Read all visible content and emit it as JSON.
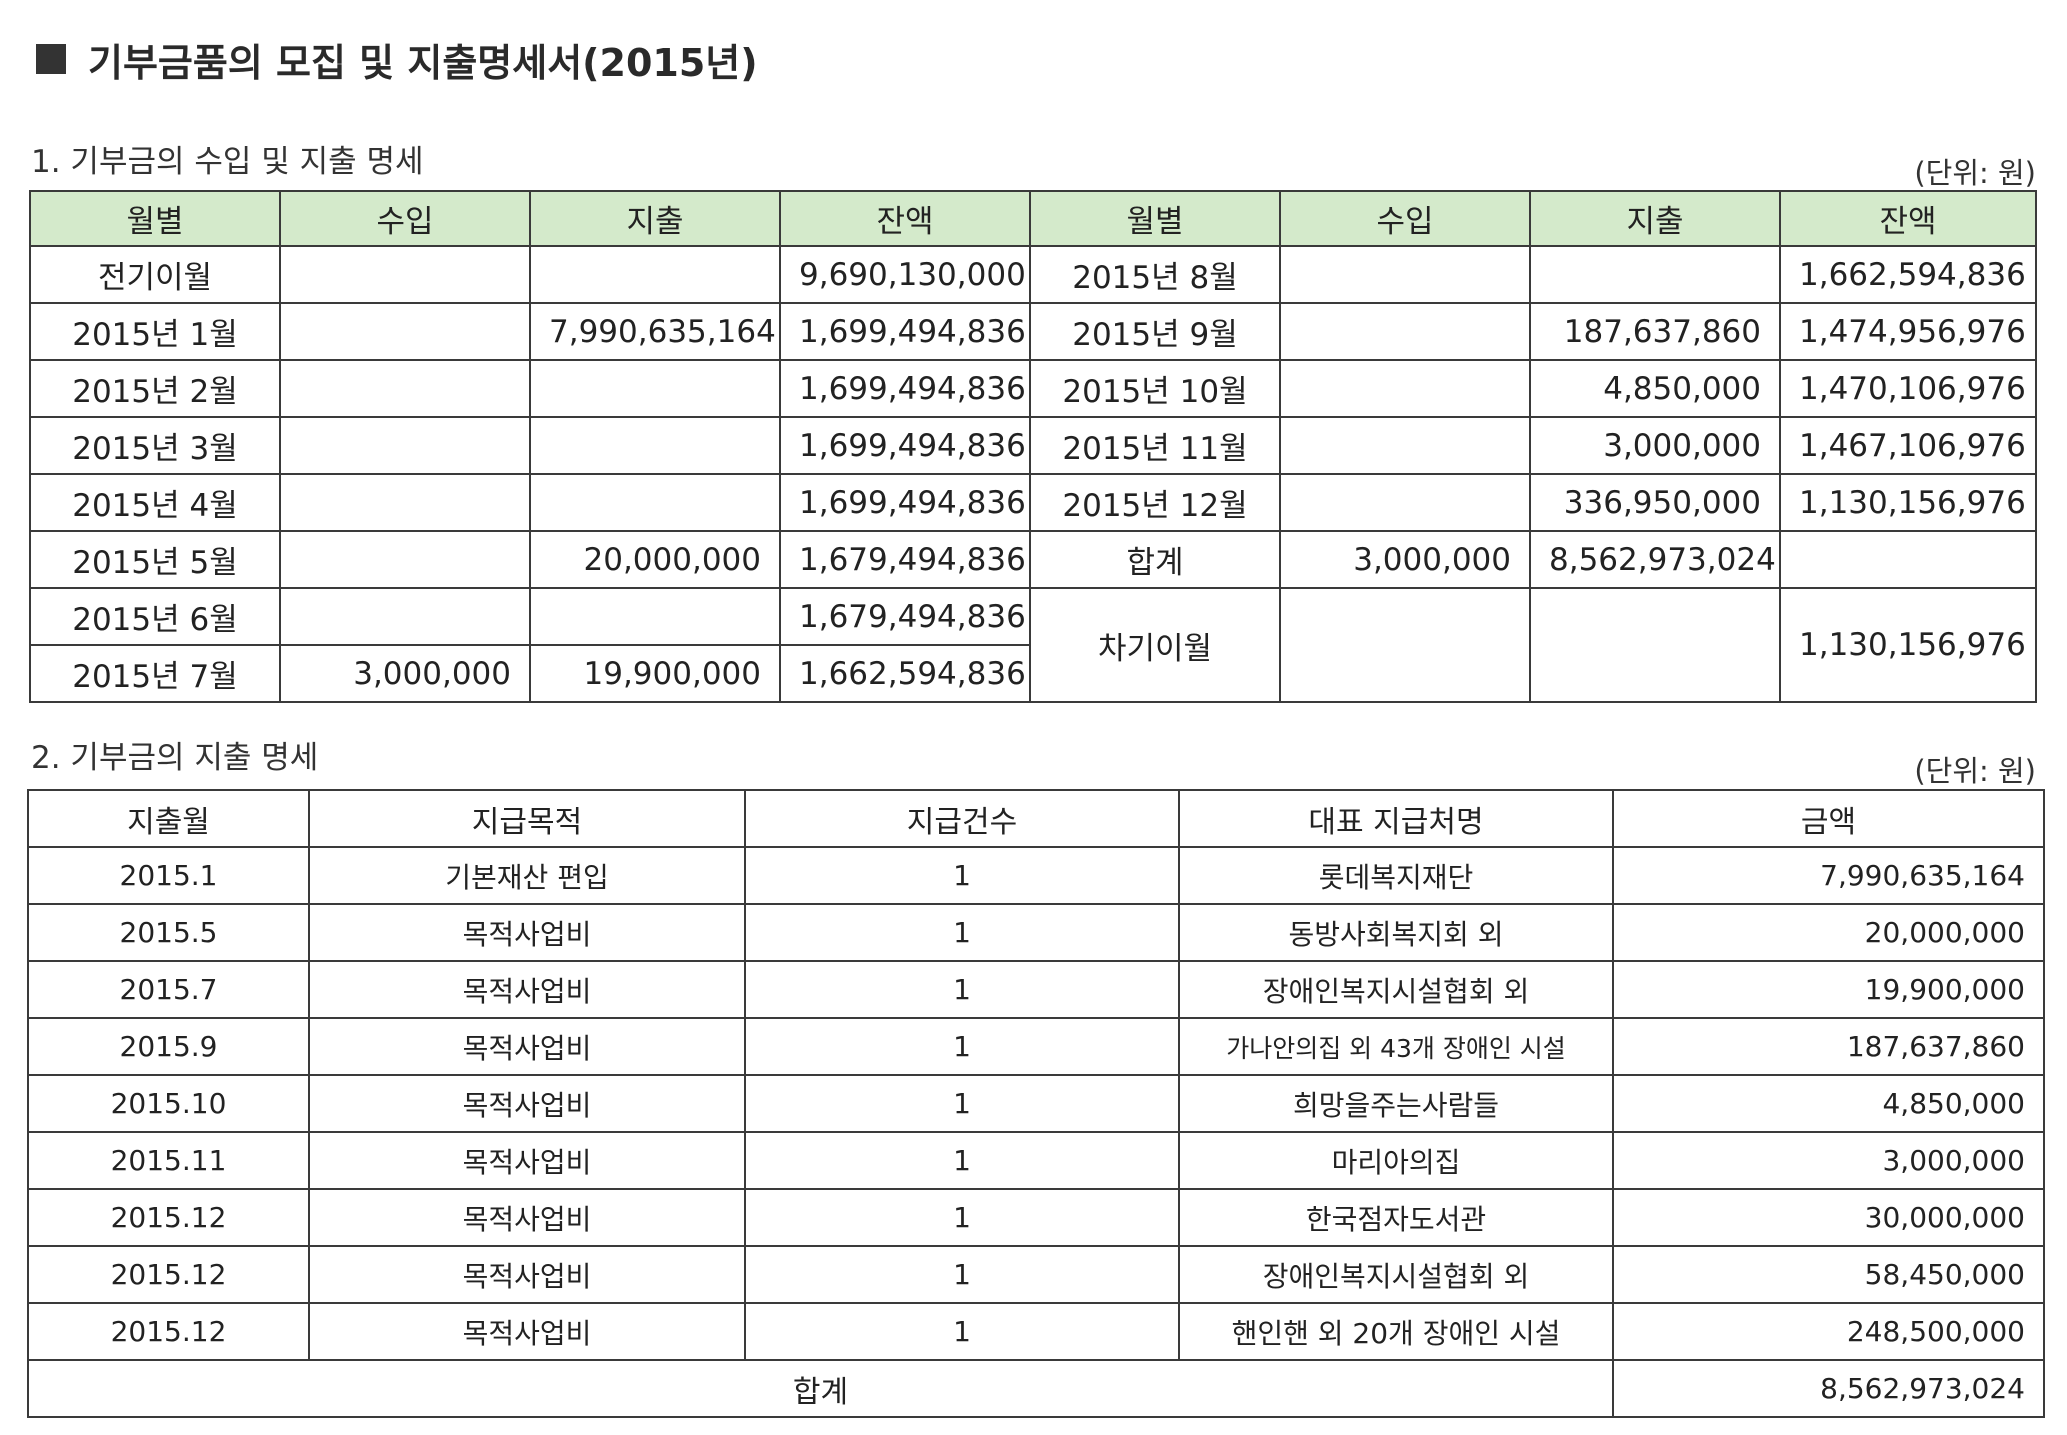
{
  "page_title": "기부금품의 모집 및 지출명세서(2015년)",
  "section1": {
    "title": "1. 기부금의 수입 및 지출 명세",
    "unit": "(단위: 원)",
    "headers": [
      "월별",
      "수입",
      "지출",
      "잔액",
      "월별",
      "수입",
      "지출",
      "잔액"
    ],
    "left_rows": [
      {
        "month": "전기이월",
        "income": "",
        "expense": "",
        "balance": "9,690,130,000"
      },
      {
        "month": "2015년 1월",
        "income": "",
        "expense": "7,990,635,164",
        "balance": "1,699,494,836"
      },
      {
        "month": "2015년 2월",
        "income": "",
        "expense": "",
        "balance": "1,699,494,836"
      },
      {
        "month": "2015년 3월",
        "income": "",
        "expense": "",
        "balance": "1,699,494,836"
      },
      {
        "month": "2015년 4월",
        "income": "",
        "expense": "",
        "balance": "1,699,494,836"
      },
      {
        "month": "2015년 5월",
        "income": "",
        "expense": "20,000,000",
        "balance": "1,679,494,836"
      },
      {
        "month": "2015년 6월",
        "income": "",
        "expense": "",
        "balance": "1,679,494,836"
      },
      {
        "month": "2015년 7월",
        "income": "3,000,000",
        "expense": "19,900,000",
        "balance": "1,662,594,836"
      }
    ],
    "right_rows": [
      {
        "month": "2015년 8월",
        "income": "",
        "expense": "",
        "balance": "1,662,594,836"
      },
      {
        "month": "2015년 9월",
        "income": "",
        "expense": "187,637,860",
        "balance": "1,474,956,976"
      },
      {
        "month": "2015년 10월",
        "income": "",
        "expense": "4,850,000",
        "balance": "1,470,106,976"
      },
      {
        "month": "2015년 11월",
        "income": "",
        "expense": "3,000,000",
        "balance": "1,467,106,976"
      },
      {
        "month": "2015년 12월",
        "income": "",
        "expense": "336,950,000",
        "balance": "1,130,156,976"
      },
      {
        "month": "합계",
        "income": "3,000,000",
        "expense": "8,562,973,024",
        "balance": ""
      },
      {
        "month": "차기이월",
        "income": "",
        "expense": "",
        "balance": "1,130,156,976"
      }
    ]
  },
  "section2": {
    "title": "2. 기부금의 지출 명세",
    "unit": "(단위: 원)",
    "headers": [
      "지출월",
      "지급목적",
      "지급건수",
      "대표 지급처명",
      "금액"
    ],
    "rows": [
      {
        "month": "2015.1",
        "purpose": "기본재산 편입",
        "count": "1",
        "recipient": "롯데복지재단",
        "amount": "7,990,635,164"
      },
      {
        "month": "2015.5",
        "purpose": "목적사업비",
        "count": "1",
        "recipient": "동방사회복지회 외",
        "amount": "20,000,000"
      },
      {
        "month": "2015.7",
        "purpose": "목적사업비",
        "count": "1",
        "recipient": "장애인복지시설협회 외",
        "amount": "19,900,000"
      },
      {
        "month": "2015.9",
        "purpose": "목적사업비",
        "count": "1",
        "recipient": "가나안의집 외 43개 장애인 시설",
        "amount": "187,637,860"
      },
      {
        "month": "2015.10",
        "purpose": "목적사업비",
        "count": "1",
        "recipient": "희망을주는사람들",
        "amount": "4,850,000"
      },
      {
        "month": "2015.11",
        "purpose": "목적사업비",
        "count": "1",
        "recipient": "마리아의집",
        "amount": "3,000,000"
      },
      {
        "month": "2015.12",
        "purpose": "목적사업비",
        "count": "1",
        "recipient": "한국점자도서관",
        "amount": "30,000,000"
      },
      {
        "month": "2015.12",
        "purpose": "목적사업비",
        "count": "1",
        "recipient": "장애인복지시설협회 외",
        "amount": "58,450,000"
      },
      {
        "month": "2015.12",
        "purpose": "목적사업비",
        "count": "1",
        "recipient": "핸인핸 외 20개 장애인 시설",
        "amount": "248,500,000"
      }
    ],
    "total_label": "합계",
    "total_amount": "8,562,973,024"
  }
}
